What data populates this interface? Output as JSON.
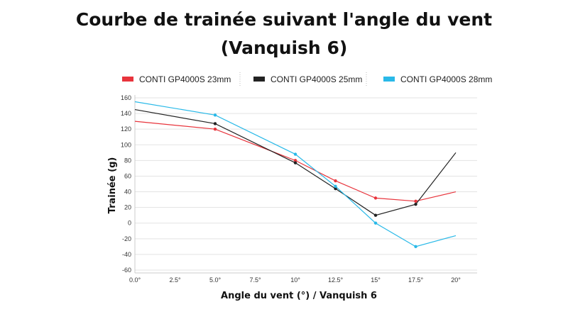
{
  "title_line1": "Courbe de trainée suivant l'angle du vent",
  "title_line2": "(Vanquish 6)",
  "chart_data": {
    "type": "line",
    "x": [
      0,
      2.5,
      5,
      7.5,
      10,
      12.5,
      15,
      17.5,
      20
    ],
    "x_tick_labels": [
      "0.0°",
      "2.5°",
      "5.0°",
      "7.5°",
      "10°",
      "12.5°",
      "15°",
      "17.5°",
      "20°"
    ],
    "y_ticks": [
      160,
      140,
      120,
      100,
      80,
      60,
      40,
      20,
      0,
      -20,
      -40,
      -60
    ],
    "ylim": [
      -60,
      160
    ],
    "xlim": [
      0,
      20
    ],
    "xlabel": "Angle du vent (°) / Vanquish 6",
    "ylabel": "Trainée (g)",
    "grid": true,
    "legend_position": "top",
    "series": [
      {
        "name": "CONTI GP4000S 23mm",
        "color": "#e8343c",
        "points": [
          [
            0,
            130
          ],
          [
            5,
            120
          ],
          [
            10,
            80
          ],
          [
            12.5,
            54
          ],
          [
            15,
            32
          ],
          [
            17.5,
            28
          ],
          [
            20,
            40
          ]
        ],
        "markers": [
          5,
          10,
          12.5,
          15,
          17.5
        ]
      },
      {
        "name": "CONTI GP4000S 25mm",
        "color": "#222222",
        "points": [
          [
            0,
            145
          ],
          [
            5,
            127
          ],
          [
            10,
            77
          ],
          [
            12.5,
            44
          ],
          [
            15,
            10
          ],
          [
            17.5,
            24
          ],
          [
            20,
            90
          ]
        ],
        "markers": [
          5,
          10,
          12.5,
          15,
          17.5
        ]
      },
      {
        "name": "CONTI GP4000S 28mm",
        "color": "#29b9e8",
        "points": [
          [
            0,
            155
          ],
          [
            5,
            138
          ],
          [
            10,
            88
          ],
          [
            12.5,
            47
          ],
          [
            15,
            0
          ],
          [
            17.5,
            -30
          ],
          [
            20,
            -16
          ]
        ],
        "markers": [
          5,
          10,
          12.5,
          15,
          17.5
        ]
      }
    ]
  }
}
